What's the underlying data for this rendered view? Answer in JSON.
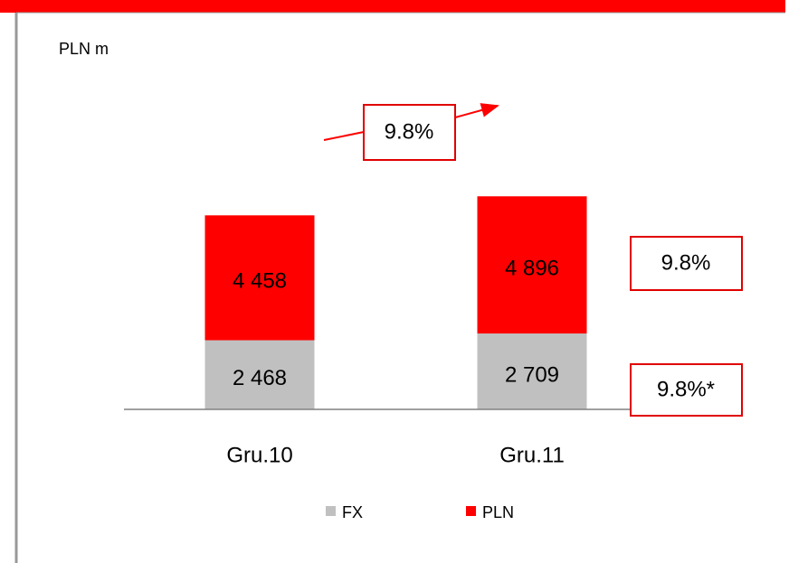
{
  "chart_data": {
    "type": "stacked_bar",
    "unit_label": "PLN m",
    "categories": [
      "Gru.10",
      "Gru.11"
    ],
    "series": [
      {
        "name": "FX",
        "color": "#c0c0c0",
        "values": [
          2468,
          2709
        ],
        "value_labels": [
          "2 468",
          "2 709"
        ]
      },
      {
        "name": "PLN",
        "color": "#ff0000",
        "values": [
          4458,
          4896
        ],
        "value_labels": [
          "4 458",
          "4 896"
        ]
      }
    ],
    "annotations": [
      "9.8%",
      "9.8%",
      "9.8%*"
    ]
  }
}
